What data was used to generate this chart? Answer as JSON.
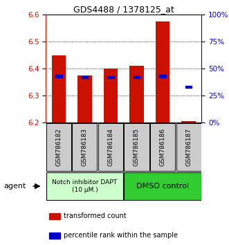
{
  "title": "GDS4488 / 1378125_at",
  "categories": [
    "GSM786182",
    "GSM786183",
    "GSM786184",
    "GSM786185",
    "GSM786186",
    "GSM786187"
  ],
  "red_values": [
    6.45,
    6.375,
    6.4,
    6.41,
    6.575,
    6.205
  ],
  "blue_values_pct": [
    43,
    42,
    42,
    42,
    43,
    33
  ],
  "ylim_left": [
    6.2,
    6.6
  ],
  "ylim_right": [
    0,
    100
  ],
  "yticks_left": [
    6.2,
    6.3,
    6.4,
    6.5,
    6.6
  ],
  "yticks_right": [
    0,
    25,
    50,
    75,
    100
  ],
  "ytick_labels_right": [
    "0%",
    "25%",
    "50%",
    "75%",
    "100%"
  ],
  "bar_bottom": 6.2,
  "red_color": "#cc1100",
  "blue_color": "#0000cc",
  "group1_label": "Notch inhibitor DAPT\n(10 μM.)",
  "group2_label": "DMSO control",
  "group1_color": "#ccffcc",
  "group2_color": "#33cc33",
  "gray_color": "#cccccc",
  "agent_label": "agent",
  "legend1": "transformed count",
  "legend2": "percentile rank within the sample",
  "bar_width": 0.55,
  "bg_color": "#ffffff"
}
